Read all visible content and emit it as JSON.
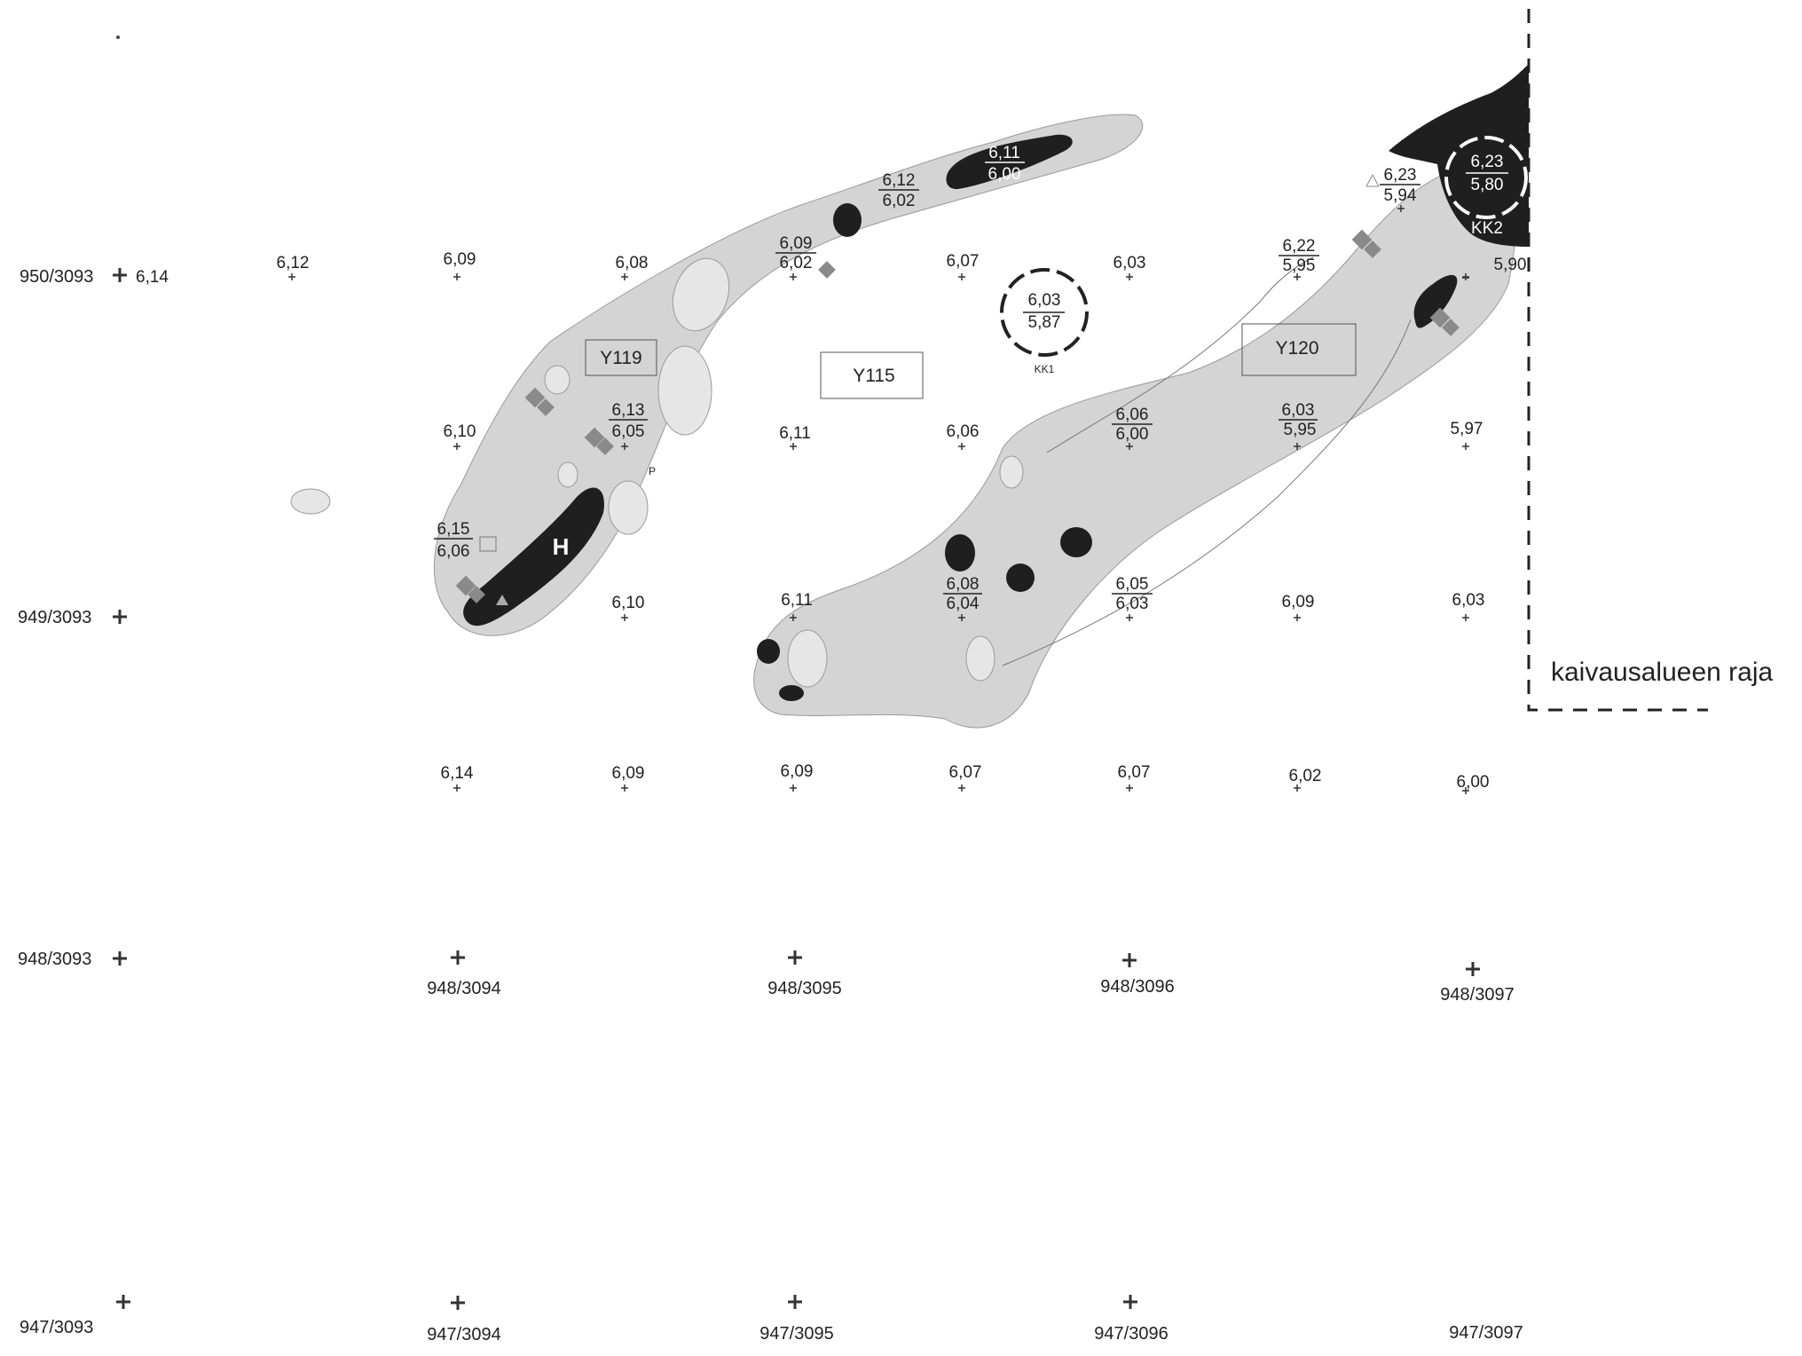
{
  "colors": {
    "feature_fill": "#d4d4d4",
    "feature_stroke": "#999999",
    "dark_patch": "#1f1f1f",
    "cross": "#333333"
  },
  "grid_labels": {
    "g950_3093": "950/3093",
    "g949_3093": "949/3093",
    "g948_3093": "948/3093",
    "g948_3094": "948/3094",
    "g948_3095": "948/3095",
    "g948_3096": "948/3096",
    "g948_3097": "948/3097",
    "g947_3093": "947/3093",
    "g947_3094": "947/3094",
    "g947_3095": "947/3095",
    "g947_3096": "947/3096",
    "g947_3097": "947/3097"
  },
  "features": {
    "y119": "Y119",
    "y115": "Y115",
    "y120": "Y120",
    "kk1": "KK1",
    "kk2": "KK2",
    "h": "H",
    "p": "P"
  },
  "elevations": {
    "r1": [
      "6,14",
      "6,12",
      "6,09",
      "6,08",
      "6,07",
      "6,03"
    ],
    "r2": [
      "6,10",
      "6,11",
      "6,06",
      "5,97"
    ],
    "r3": [
      "6,10",
      "6,11",
      "6,09",
      "6,03"
    ],
    "r4": [
      "6,14",
      "6,09",
      "6,09",
      "6,07",
      "6,07",
      "6,02",
      "6,00"
    ]
  },
  "fractions": {
    "f611": [
      "6,11",
      "6,00"
    ],
    "f612": [
      "6,12",
      "6,02"
    ],
    "f609": [
      "6,09",
      "6,02"
    ],
    "f603": [
      "6,03",
      "5,87"
    ],
    "f623a": [
      "6,23",
      "5,80"
    ],
    "f623b": [
      "6,23",
      "5,94"
    ],
    "f622": [
      "6,22",
      "5,95"
    ],
    "f590": [
      "5,90"
    ],
    "f613": [
      "6,13",
      "6,05"
    ],
    "f615": [
      "6,15",
      "6,06"
    ],
    "f606": [
      "6,06",
      "6,00"
    ],
    "f603b": [
      "6,03",
      "5,95"
    ],
    "f608": [
      "6,08",
      "6,04"
    ],
    "f605": [
      "6,05",
      "6,03"
    ]
  },
  "legend": {
    "boundary": "kaivausalueen raja"
  }
}
